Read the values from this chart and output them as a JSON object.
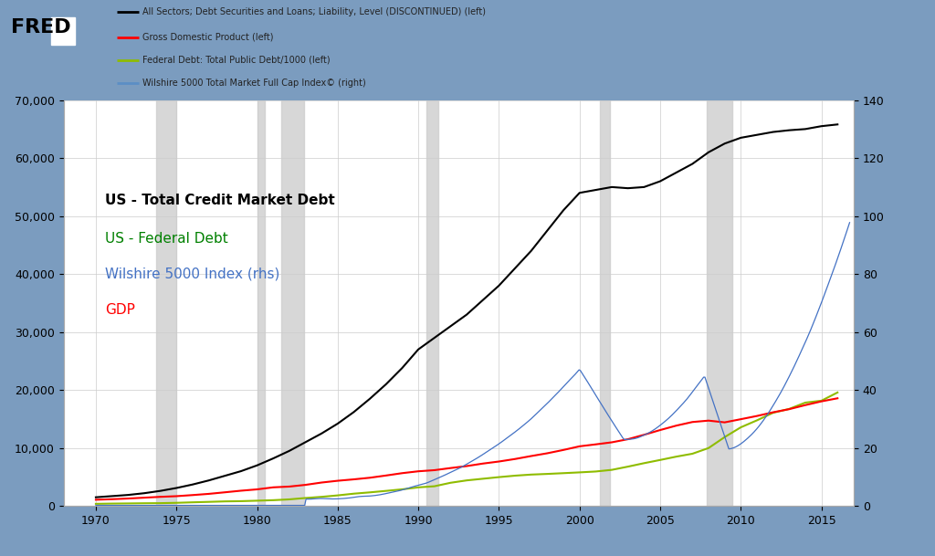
{
  "background_outer": "#7b9cbf",
  "background_inner": "#ffffff",
  "grid_color": "#cccccc",
  "recession_color": "#d0d0d0",
  "recession_alpha": 0.85,
  "recessions": [
    [
      1973.75,
      1975.0
    ],
    [
      1980.0,
      1980.5
    ],
    [
      1981.5,
      1982.9
    ],
    [
      1990.5,
      1991.25
    ],
    [
      2001.25,
      2001.9
    ],
    [
      2007.9,
      2009.5
    ]
  ],
  "fred_legend": [
    {
      "label": "All Sectors; Debt Securities and Loans; Liability, Level (DISCONTINUED) (left)",
      "color": "black"
    },
    {
      "label": "Gross Domestic Product (left)",
      "color": "red"
    },
    {
      "label": "Federal Debt: Total Public Debt/1000 (left)",
      "color": "#8fbc00"
    },
    {
      "label": "Wilshire 5000 Total Market Full Cap Index© (right)",
      "color": "#5b8ec5"
    }
  ],
  "legend_labels": [
    {
      "text": "US - Total Credit Market Debt",
      "color": "black",
      "fontsize": 11,
      "bold": true
    },
    {
      "text": "US - Federal Debt",
      "color": "green",
      "fontsize": 11,
      "bold": false
    },
    {
      "text": "Wilshire 5000 Index (rhs)",
      "color": "#4472c4",
      "fontsize": 11,
      "bold": false
    },
    {
      "text": "GDP",
      "color": "red",
      "fontsize": 11,
      "bold": false
    }
  ],
  "ylim_left": [
    0,
    70000
  ],
  "ylim_right": [
    0,
    140
  ],
  "yticks_left": [
    0,
    10000,
    20000,
    30000,
    40000,
    50000,
    60000,
    70000
  ],
  "yticks_right": [
    0,
    20,
    40,
    60,
    80,
    100,
    120,
    140
  ],
  "xlim": [
    1968.0,
    2017.0
  ],
  "xticks": [
    1970,
    1975,
    1980,
    1985,
    1990,
    1995,
    2000,
    2005,
    2010,
    2015
  ],
  "tcmd": [
    1500,
    1700,
    1900,
    2200,
    2600,
    3100,
    3700,
    4400,
    5200,
    6000,
    7000,
    8200,
    9500,
    11000,
    12500,
    14200,
    16200,
    18500,
    21000,
    23800,
    27000,
    29000,
    31000,
    33000,
    35500,
    38000,
    41000,
    44000,
    47500,
    51000,
    54000,
    54500,
    55000,
    54800,
    55000,
    56000,
    57500,
    59000,
    61000,
    62500,
    63500,
    64000,
    64500,
    64800,
    65000,
    65500,
    65800
  ],
  "gdp": [
    1073,
    1165,
    1283,
    1429,
    1575,
    1688,
    1878,
    2086,
    2356,
    2632,
    2863,
    3211,
    3345,
    3638,
    4041,
    4347,
    4590,
    4870,
    5253,
    5658,
    5980,
    6174,
    6539,
    6879,
    7309,
    7665,
    8100,
    8609,
    9089,
    9661,
    10286,
    10622,
    10977,
    11511,
    12275,
    13094,
    13856,
    14478,
    14720,
    14418,
    14964,
    15518,
    16155,
    16692,
    17393,
    18037,
    18569
  ],
  "fed_debt": [
    370,
    408,
    435,
    466,
    484,
    542,
    629,
    706,
    789,
    828,
    909,
    995,
    1137,
    1372,
    1572,
    1823,
    2120,
    2346,
    2601,
    2868,
    3207,
    3399,
    3999,
    4411,
    4693,
    4974,
    5225,
    5413,
    5526,
    5657,
    5792,
    5943,
    6228,
    6783,
    7379,
    7933,
    8507,
    9008,
    9986,
    11876,
    13562,
    14764,
    16066,
    16738,
    17824,
    18151,
    19573
  ],
  "line_colors": {
    "tcmd": "black",
    "gdp": "red",
    "fed_debt": "#8fbc00",
    "wilshire": "#4472c4"
  }
}
